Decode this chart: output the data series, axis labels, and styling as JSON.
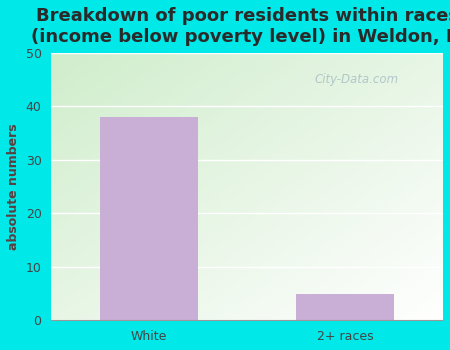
{
  "title": "Breakdown of poor residents within races\n(income below poverty level) in Weldon, IL",
  "categories": [
    "White",
    "2+ races"
  ],
  "values": [
    38,
    5
  ],
  "bar_color": "#c9aed6",
  "ylabel": "absolute numbers",
  "ylim": [
    0,
    50
  ],
  "yticks": [
    0,
    10,
    20,
    30,
    40,
    50
  ],
  "background_outer": "#00e8e8",
  "grid_color": "#ffffff",
  "title_fontsize": 13,
  "axis_label_fontsize": 9,
  "tick_fontsize": 9,
  "watermark": "City-Data.com",
  "title_color": "#2a2a2a",
  "ylabel_color": "#5a4040"
}
